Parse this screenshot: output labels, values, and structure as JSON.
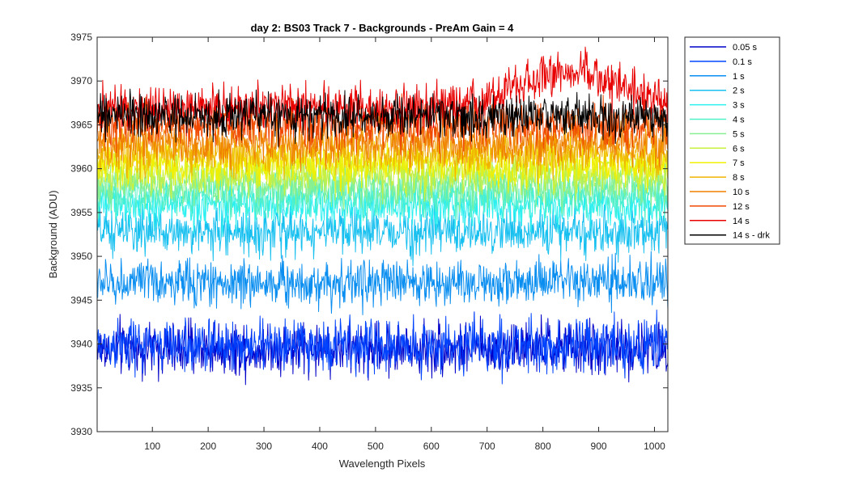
{
  "chart_data": {
    "type": "line",
    "title": "day 2: BS03  Track 7 - Backgrounds - PreAm Gain = 4",
    "xlabel": "Wavelength Pixels",
    "ylabel": "Background (ADU)",
    "xlim": [
      1,
      1024
    ],
    "ylim": [
      3930,
      3975
    ],
    "x_ticks": [
      100,
      200,
      300,
      400,
      500,
      600,
      700,
      800,
      900,
      1000
    ],
    "y_ticks": [
      3930,
      3935,
      3940,
      3945,
      3950,
      3955,
      3960,
      3965,
      3970,
      3975
    ],
    "grid": false,
    "legend_position": "outside-right-top",
    "series": [
      {
        "name": "0.05 s",
        "color": "#0000c8",
        "mean": 3939.5,
        "noise": 1.5
      },
      {
        "name": "0.1 s",
        "color": "#0044ff",
        "mean": 3939.8,
        "noise": 1.5
      },
      {
        "name": "1 s",
        "color": "#0a8ef0",
        "mean": 3947.0,
        "noise": 1.3
      },
      {
        "name": "2 s",
        "color": "#18c0f0",
        "mean": 3952.8,
        "noise": 1.3
      },
      {
        "name": "3 s",
        "color": "#2cf0f0",
        "mean": 3955.8,
        "noise": 1.2
      },
      {
        "name": "4 s",
        "color": "#52f0c8",
        "mean": 3957.0,
        "noise": 1.2
      },
      {
        "name": "5 s",
        "color": "#88f090",
        "mean": 3958.2,
        "noise": 1.2
      },
      {
        "name": "6 s",
        "color": "#c8f040",
        "mean": 3959.5,
        "noise": 1.2
      },
      {
        "name": "7 s",
        "color": "#f0f000",
        "mean": 3960.5,
        "noise": 1.2
      },
      {
        "name": "8 s",
        "color": "#f0b400",
        "mean": 3961.8,
        "noise": 1.2
      },
      {
        "name": "10 s",
        "color": "#f08000",
        "mean": 3963.0,
        "noise": 1.2
      },
      {
        "name": "12 s",
        "color": "#f04800",
        "mean": 3965.0,
        "noise": 1.3
      },
      {
        "name": "14 s",
        "color": "#e80000",
        "mean": 3967.0,
        "noise": 1.3,
        "bump": {
          "center": 850,
          "width": 130,
          "height": 4
        }
      },
      {
        "name": "14 s - drk",
        "color": "#000000",
        "mean": 3966.0,
        "noise": 1.2
      }
    ]
  }
}
